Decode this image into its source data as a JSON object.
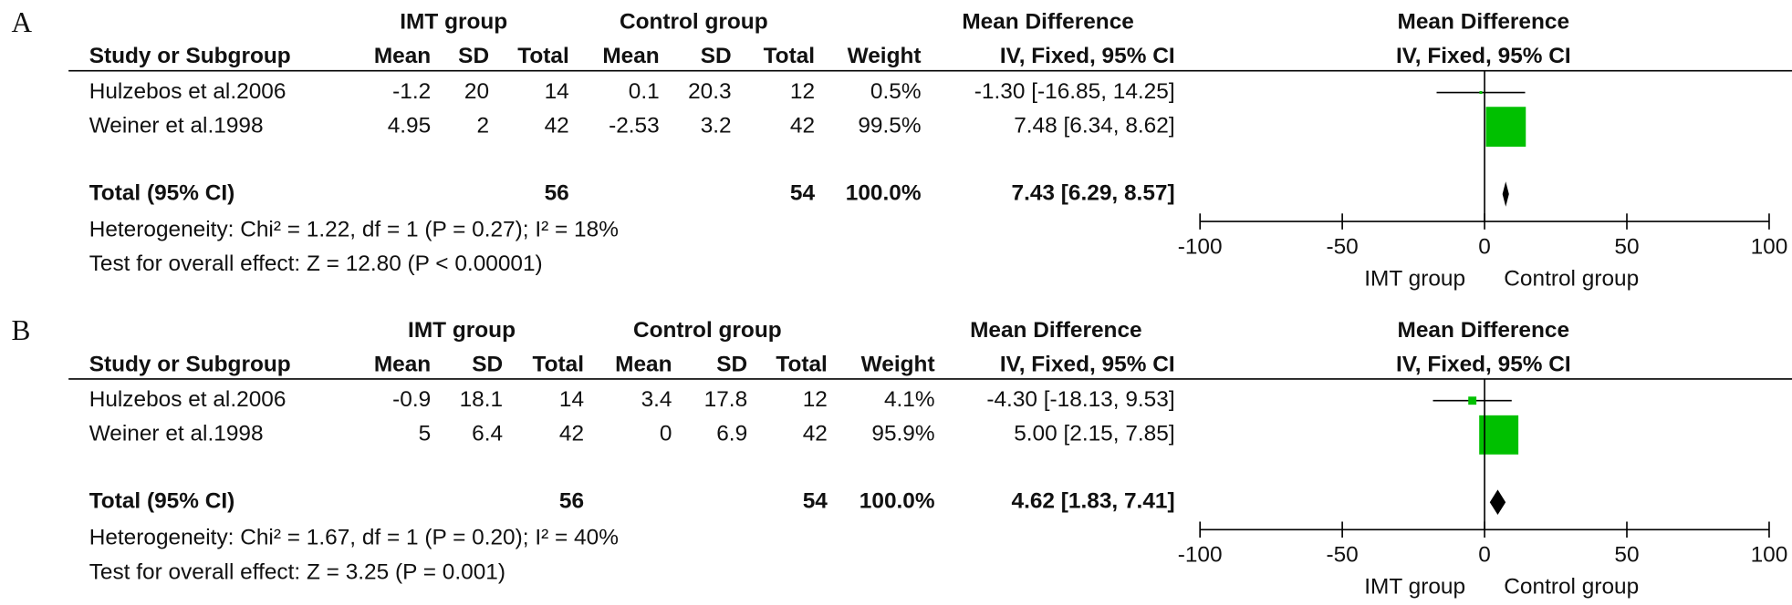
{
  "chart_data": [
    {
      "type": "forest",
      "panel": "A",
      "group_labels": [
        "IMT group",
        "Control group",
        "Mean Difference"
      ],
      "columns": [
        "Study or Subgroup",
        "Mean",
        "SD",
        "Total",
        "Mean",
        "SD",
        "Total",
        "Weight",
        "IV, Fixed, 95% CI"
      ],
      "plot_title": "Mean Difference",
      "plot_subtitle": "IV, Fixed, 95% CI",
      "studies": [
        "Hulzebos et al.2006",
        "Weiner et al.1998"
      ],
      "imt_mean": [
        -1.2,
        4.95
      ],
      "imt_sd": [
        20,
        2
      ],
      "imt_total": [
        14,
        42
      ],
      "control_mean": [
        0.1,
        -2.53
      ],
      "control_sd": [
        20.3,
        3.2
      ],
      "control_total": [
        12,
        42
      ],
      "weights": [
        0.5,
        99.5
      ],
      "weight_labels": [
        "0.5%",
        "99.5%"
      ],
      "values": [
        -1.3,
        7.48
      ],
      "lower": [
        -16.85,
        6.34
      ],
      "upper": [
        14.25,
        8.62
      ],
      "value_labels": [
        "-1.30 [-16.85, 14.25]",
        "7.48 [6.34, 8.62]"
      ],
      "total": {
        "label": "Total (95% CI)",
        "imt_total": 56,
        "control_total": 54,
        "weight_label": "100.0%",
        "value": 7.43,
        "lower": 6.29,
        "upper": 8.57,
        "value_label": "7.43 [6.29, 8.57]"
      },
      "heterogeneity": "Heterogeneity: Chi² = 1.22, df = 1 (P = 0.27); I² = 18%",
      "overall_effect": "Test for overall effect: Z = 12.80 (P < 0.00001)",
      "xlim": [
        -100,
        100
      ],
      "xticks": [
        -100,
        -50,
        0,
        50,
        100
      ],
      "x_labels": [
        "IMT group",
        "Control group"
      ],
      "color": "#00c000"
    },
    {
      "type": "forest",
      "panel": "B",
      "group_labels": [
        "IMT group",
        "Control group",
        "Mean Difference"
      ],
      "columns": [
        "Study or Subgroup",
        "Mean",
        "SD",
        "Total",
        "Mean",
        "SD",
        "Total",
        "Weight",
        "IV, Fixed, 95% CI"
      ],
      "plot_title": "Mean Difference",
      "plot_subtitle": "IV, Fixed, 95% CI",
      "studies": [
        "Hulzebos et al.2006",
        "Weiner et al.1998"
      ],
      "imt_mean": [
        -0.9,
        5
      ],
      "imt_sd": [
        18.1,
        6.4
      ],
      "imt_total": [
        14,
        42
      ],
      "control_mean": [
        3.4,
        0
      ],
      "control_sd": [
        17.8,
        6.9
      ],
      "control_total": [
        12,
        42
      ],
      "weights": [
        4.1,
        95.9
      ],
      "weight_labels": [
        "4.1%",
        "95.9%"
      ],
      "values": [
        -4.3,
        5
      ],
      "lower": [
        -18.13,
        2.15
      ],
      "upper": [
        9.53,
        7.85
      ],
      "value_labels": [
        "-4.30 [-18.13, 9.53]",
        "5.00 [2.15, 7.85]"
      ],
      "total": {
        "label": "Total (95% CI)",
        "imt_total": 56,
        "control_total": 54,
        "weight_label": "100.0%",
        "value": 4.62,
        "lower": 1.83,
        "upper": 7.41,
        "value_label": "4.62 [1.83, 7.41]"
      },
      "heterogeneity": "Heterogeneity: Chi² = 1.67, df = 1 (P = 0.20); I² = 40%",
      "overall_effect": "Test for overall effect: Z = 3.25 (P = 0.001)",
      "xlim": [
        -100,
        100
      ],
      "xticks": [
        -100,
        -50,
        0,
        50,
        100
      ],
      "x_labels": [
        "IMT group",
        "Control group"
      ],
      "color": "#00c000"
    }
  ]
}
